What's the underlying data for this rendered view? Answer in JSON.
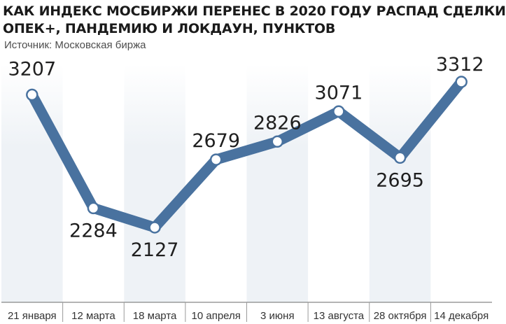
{
  "title_line1": "КАК ИНДЕКС МОСБИРЖИ ПЕРЕНЕС В 2020 ГОДУ РАСПАД СДЕЛКИ",
  "title_line2": "ОПЕК+, ПАНДЕМИЮ И ЛОКДАУН, ПУНКТОВ",
  "source": "Источник: Московская биржа",
  "colors": {
    "line": "#49729f",
    "marker_fill": "#ffffff",
    "band": "#eef2f6",
    "text": "#1f1f1f"
  },
  "chart_data": {
    "type": "line",
    "title": "КАК ИНДЕКС МОСБИРЖИ ПЕРЕНЕС В 2020 ГОДУ РАСПАД СДЕЛКИ ОПЕК+, ПАНДЕМИЮ И ЛОКДАУН, ПУНКТОВ",
    "categories": [
      "21 января",
      "12 марта",
      "18 марта",
      "10 апреля",
      "3 июня",
      "13 августа",
      "28 октября",
      "14 декабря"
    ],
    "values": [
      3207,
      2284,
      2127,
      2679,
      2826,
      3071,
      2695,
      3312
    ],
    "data_labels": [
      "3207",
      "2284",
      "2127",
      "2679",
      "2826",
      "3071",
      "2695",
      "3312"
    ],
    "xlabel": "",
    "ylabel": "",
    "grid": false,
    "alternating_bands": true
  }
}
